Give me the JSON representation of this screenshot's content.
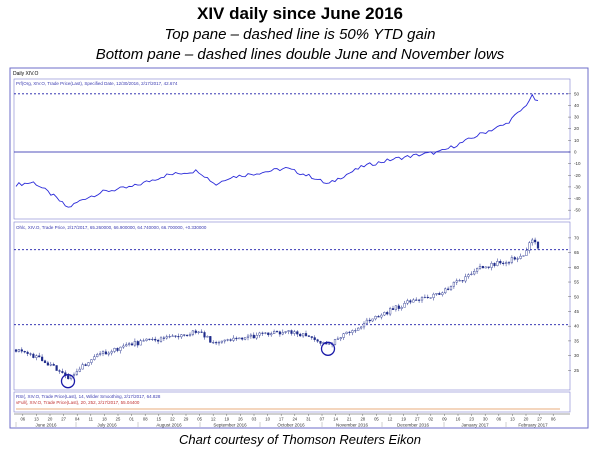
{
  "header": {
    "title": "XIV daily since June 2016",
    "subtitle1": "Top pane – dashed line is 50% YTD gain",
    "subtitle2": "Bottom pane – dashed lines double June and November lows"
  },
  "credit": "Chart courtesy of Thomson Reuters Eikon",
  "chart_data": [
    {
      "type": "line",
      "pane_label": "Daily XIV.O",
      "legend": "Prf(Org, XIV.O, Trade Price(Last), Specified Date, 12/30/2016, 2/17/2017, 42.674",
      "ylim": [
        -55,
        55
      ],
      "y_ticks": [
        -50,
        -40,
        -30,
        -20,
        -10,
        0,
        10,
        20,
        30,
        40,
        50
      ],
      "reference_lines": [
        {
          "y": 50,
          "style": "dashed"
        },
        {
          "y": 0,
          "style": "solid"
        }
      ],
      "x": [
        "2016-06-01",
        "2016-06-10",
        "2016-06-20",
        "2016-06-27",
        "2016-07-05",
        "2016-07-15",
        "2016-07-29",
        "2016-08-15",
        "2016-08-31",
        "2016-09-09",
        "2016-09-15",
        "2016-09-30",
        "2016-10-14",
        "2016-10-28",
        "2016-11-04",
        "2016-11-10",
        "2016-11-22",
        "2016-12-07",
        "2016-12-21",
        "2016-12-30",
        "2017-01-10",
        "2017-01-20",
        "2017-02-01",
        "2017-02-10",
        "2017-02-14",
        "2017-02-17"
      ],
      "values": [
        -28,
        -26,
        -38,
        -48,
        -40,
        -34,
        -30,
        -20,
        -16,
        -28,
        -22,
        -18,
        -14,
        -22,
        -28,
        -22,
        -12,
        -6,
        -2,
        0,
        8,
        16,
        24,
        38,
        48,
        42.674
      ]
    },
    {
      "type": "candlestick",
      "legend": "Ohlc, XIV.O, Trade Price, 2/17/2017, 65.260000, 66.900000, 64.740000, 66.700000, +0.330000",
      "ylim": [
        19,
        72
      ],
      "y_ticks": [
        25,
        30,
        35,
        40,
        45,
        50,
        55,
        60,
        65,
        70
      ],
      "reference_lines": [
        {
          "y": 66,
          "style": "dashed"
        },
        {
          "y": 40.5,
          "style": "dashed"
        }
      ],
      "circled_lows": [
        "2016-06-27",
        "2016-11-04"
      ],
      "x": [
        "2016-06-01",
        "2016-06-10",
        "2016-06-20",
        "2016-06-27",
        "2016-07-05",
        "2016-07-15",
        "2016-07-29",
        "2016-08-15",
        "2016-08-31",
        "2016-09-09",
        "2016-09-15",
        "2016-09-30",
        "2016-10-14",
        "2016-10-28",
        "2016-11-04",
        "2016-11-10",
        "2016-11-22",
        "2016-12-07",
        "2016-12-21",
        "2016-12-30",
        "2017-01-10",
        "2017-01-20",
        "2017-02-01",
        "2017-02-10",
        "2017-02-14",
        "2017-02-17"
      ],
      "close": [
        32,
        30,
        26,
        22,
        27,
        31,
        34,
        36,
        38,
        34,
        35,
        37,
        38,
        36,
        33,
        36,
        41,
        46,
        50,
        51,
        56,
        60,
        62,
        64,
        70,
        66.7
      ]
    }
  ],
  "volume_pane": {
    "line1": "RSI(, XIV.O, Trade Price(Last), 14, Wilder Smoothing, 2/17/2017, 64.828",
    "line2": "vFull(, XIV.O, Trade Price(Last), 20, 252, 2/17/2017, 55.04400"
  },
  "x_axis": {
    "day_ticks": [
      "06",
      "13",
      "20",
      "27",
      "04",
      "11",
      "18",
      "25",
      "01",
      "08",
      "15",
      "22",
      "29",
      "05",
      "12",
      "19",
      "26",
      "03",
      "10",
      "17",
      "24",
      "31",
      "07",
      "14",
      "21",
      "28",
      "05",
      "12",
      "19",
      "27",
      "02",
      "09",
      "16",
      "23",
      "30",
      "06",
      "13",
      "20",
      "27",
      "06"
    ],
    "month_labels": [
      "June 2016",
      "July 2016",
      "August 2016",
      "September 2016",
      "October 2016",
      "November 2016",
      "December 2016",
      "January 2017",
      "February 2017"
    ]
  },
  "colors": {
    "line": "#2b2bd9",
    "ref": "#1a1aa8",
    "candle": "#1d2a8a",
    "frame": "#2a2aa0"
  }
}
